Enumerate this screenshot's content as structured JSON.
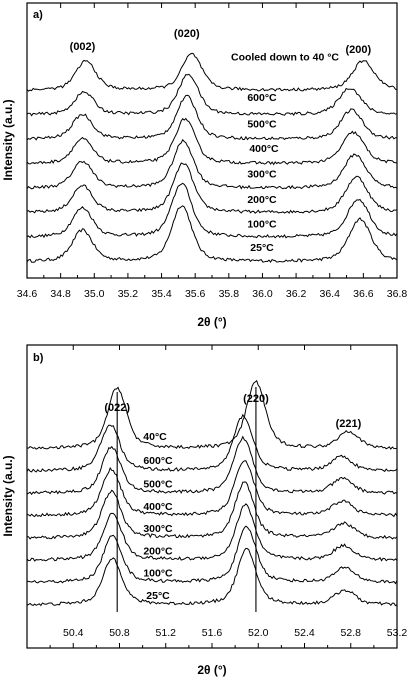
{
  "chart_data": [
    {
      "type": "line",
      "panel_label": "a)",
      "xlabel": "2θ (°)",
      "ylabel": "Intensity (a.u.)",
      "xlim": [
        34.6,
        36.8
      ],
      "x_ticks": [
        "34.6",
        "34.8",
        "35.0",
        "35.2",
        "35.4",
        "35.6",
        "35.8",
        "36.0",
        "36.2",
        "36.4",
        "36.6",
        "36.8"
      ],
      "peaks": [
        {
          "label": "(002)",
          "position": 34.93
        },
        {
          "label": "(020)",
          "position": 35.55
        },
        {
          "label": "(200)",
          "position": 36.57
        }
      ],
      "series": [
        {
          "name": "25°C",
          "peak_positions": [
            34.93,
            35.52,
            36.58
          ],
          "peak_heights": [
            0.7,
            1.25,
            0.95
          ]
        },
        {
          "name": "100°C",
          "peak_positions": [
            34.93,
            35.52,
            36.57
          ],
          "peak_heights": [
            0.65,
            1.2,
            0.85
          ]
        },
        {
          "name": "200°C",
          "peak_positions": [
            34.93,
            35.53,
            36.56
          ],
          "peak_heights": [
            0.6,
            1.1,
            0.8
          ]
        },
        {
          "name": "300°C",
          "peak_positions": [
            34.93,
            35.53,
            36.55
          ],
          "peak_heights": [
            0.6,
            1.05,
            0.75
          ]
        },
        {
          "name": "400°C",
          "peak_positions": [
            34.93,
            35.54,
            36.54
          ],
          "peak_heights": [
            0.55,
            1.0,
            0.7
          ]
        },
        {
          "name": "500°C",
          "peak_positions": [
            34.93,
            35.55,
            36.53
          ],
          "peak_heights": [
            0.55,
            0.95,
            0.65
          ]
        },
        {
          "name": "600°C",
          "peak_positions": [
            34.94,
            35.56,
            36.52
          ],
          "peak_heights": [
            0.5,
            0.9,
            0.6
          ]
        },
        {
          "name": "Cooled down to 40 °C",
          "peak_positions": [
            34.95,
            35.58,
            36.6
          ],
          "peak_heights": [
            0.65,
            0.8,
            0.65
          ]
        }
      ]
    },
    {
      "type": "line",
      "panel_label": "b)",
      "xlabel": "2θ (°)",
      "ylabel": "Intensity (a.u.)",
      "xlim": [
        50.0,
        53.2
      ],
      "x_ticks": [
        "50.4",
        "50.8",
        "51.2",
        "51.6",
        "52.0",
        "52.4",
        "52.8",
        "53.2"
      ],
      "peaks": [
        {
          "label": "(022)",
          "position": 50.78
        },
        {
          "label": "(220)",
          "position": 51.98
        },
        {
          "label": "(221)",
          "position": 52.78
        }
      ],
      "reference_lines": [
        50.78,
        51.98
      ],
      "series": [
        {
          "name": "25°C",
          "peak_positions": [
            50.74,
            51.9,
            52.75
          ],
          "peak_heights": [
            0.8,
            0.95,
            0.25
          ]
        },
        {
          "name": "100°C",
          "peak_positions": [
            50.74,
            51.9,
            52.75
          ],
          "peak_heights": [
            0.8,
            0.95,
            0.25
          ]
        },
        {
          "name": "200°C",
          "peak_positions": [
            50.74,
            51.89,
            52.74
          ],
          "peak_heights": [
            0.8,
            0.95,
            0.25
          ]
        },
        {
          "name": "300°C",
          "peak_positions": [
            50.73,
            51.88,
            52.74
          ],
          "peak_heights": [
            0.8,
            0.95,
            0.25
          ]
        },
        {
          "name": "400°C",
          "peak_positions": [
            50.73,
            51.88,
            52.73
          ],
          "peak_heights": [
            0.8,
            0.95,
            0.25
          ]
        },
        {
          "name": "500°C",
          "peak_positions": [
            50.73,
            51.87,
            52.73
          ],
          "peak_heights": [
            0.8,
            0.95,
            0.25
          ]
        },
        {
          "name": "600°C",
          "peak_positions": [
            50.72,
            51.87,
            52.72
          ],
          "peak_heights": [
            0.8,
            0.95,
            0.25
          ]
        },
        {
          "name": "40°C",
          "peak_positions": [
            50.78,
            51.98,
            52.78
          ],
          "peak_heights": [
            1.05,
            1.15,
            0.3
          ]
        }
      ]
    }
  ]
}
